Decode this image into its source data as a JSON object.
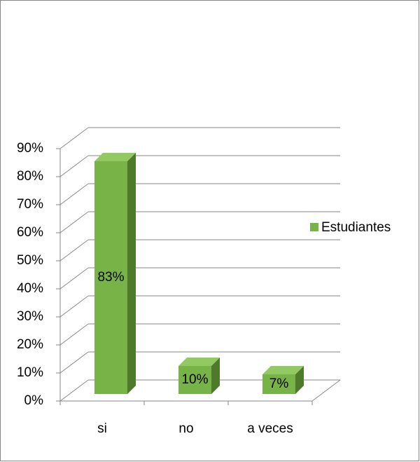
{
  "chart_data": {
    "type": "bar3d",
    "categories": [
      "si",
      "no",
      "a veces"
    ],
    "series": [
      {
        "name": "Estudiantes",
        "color": "#77b347",
        "values": [
          83,
          10,
          7
        ],
        "value_labels": [
          "83%",
          "10%",
          "7%"
        ]
      }
    ],
    "ylim": [
      0,
      90
    ],
    "yticks": [
      {
        "value": 0,
        "label": "0%"
      },
      {
        "value": 10,
        "label": "10%"
      },
      {
        "value": 20,
        "label": "20%"
      },
      {
        "value": 30,
        "label": "30%"
      },
      {
        "value": 40,
        "label": "40%"
      },
      {
        "value": 50,
        "label": "50%"
      },
      {
        "value": 60,
        "label": "60%"
      },
      {
        "value": 70,
        "label": "70%"
      },
      {
        "value": 80,
        "label": "80%"
      },
      {
        "value": 90,
        "label": "90%"
      }
    ],
    "grid": true,
    "legend": "right"
  }
}
